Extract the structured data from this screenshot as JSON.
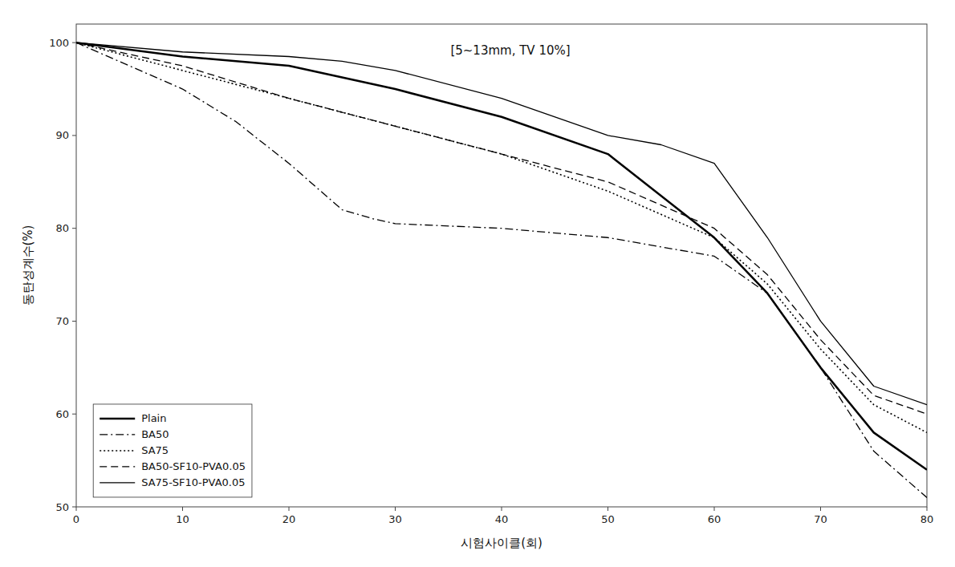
{
  "chart_data": {
    "type": "line",
    "xlabel": "시험사이클(회)",
    "ylabel": "동탄성계수(%)",
    "annotation": "[5~13mm, TV 10%]",
    "xlim": [
      0,
      80
    ],
    "ylim": [
      50,
      102
    ],
    "xticks": [
      0,
      10,
      20,
      30,
      40,
      50,
      60,
      70,
      80
    ],
    "yticks": [
      50,
      60,
      70,
      80,
      90,
      100
    ],
    "grid": false,
    "legend": "lower left",
    "series": [
      {
        "name": "Plain",
        "color": "#000000",
        "line_style": "solid",
        "x": [
          0,
          10,
          20,
          30,
          40,
          50,
          60,
          65,
          70,
          75,
          80
        ],
        "values": [
          100,
          98.5,
          97.5,
          95,
          92,
          88,
          79,
          73,
          65,
          58,
          54
        ]
      },
      {
        "name": "BA50",
        "color": "#000000",
        "line_style": "dashdot",
        "x": [
          0,
          5,
          10,
          15,
          20,
          25,
          28,
          30,
          40,
          50,
          60,
          65,
          70,
          75,
          80
        ],
        "values": [
          100,
          97.5,
          95,
          91.5,
          87,
          82,
          81,
          80.5,
          80,
          79,
          77,
          73,
          65,
          56,
          51
        ]
      },
      {
        "name": "SA75",
        "color": "#000000",
        "line_style": "dotted",
        "x": [
          0,
          10,
          20,
          30,
          40,
          50,
          60,
          65,
          70,
          75,
          80
        ],
        "values": [
          100,
          97,
          94,
          91,
          88,
          84,
          79,
          74,
          67,
          61,
          58
        ]
      },
      {
        "name": "BA50-SF10-PVA0.05",
        "color": "#000000",
        "line_style": "dashed",
        "x": [
          0,
          10,
          20,
          30,
          40,
          50,
          60,
          65,
          70,
          75,
          80
        ],
        "values": [
          100,
          97.5,
          94,
          91,
          88,
          85,
          80,
          75,
          68,
          62,
          60
        ]
      },
      {
        "name": "SA75-SF10-PVA0.05",
        "color": "#000000",
        "line_style": "solid",
        "x": [
          0,
          10,
          20,
          25,
          30,
          40,
          50,
          55,
          60,
          65,
          70,
          75,
          80
        ],
        "values": [
          100,
          99,
          98.5,
          98,
          97,
          94,
          90,
          89,
          87,
          79,
          70,
          63,
          61
        ]
      }
    ]
  }
}
